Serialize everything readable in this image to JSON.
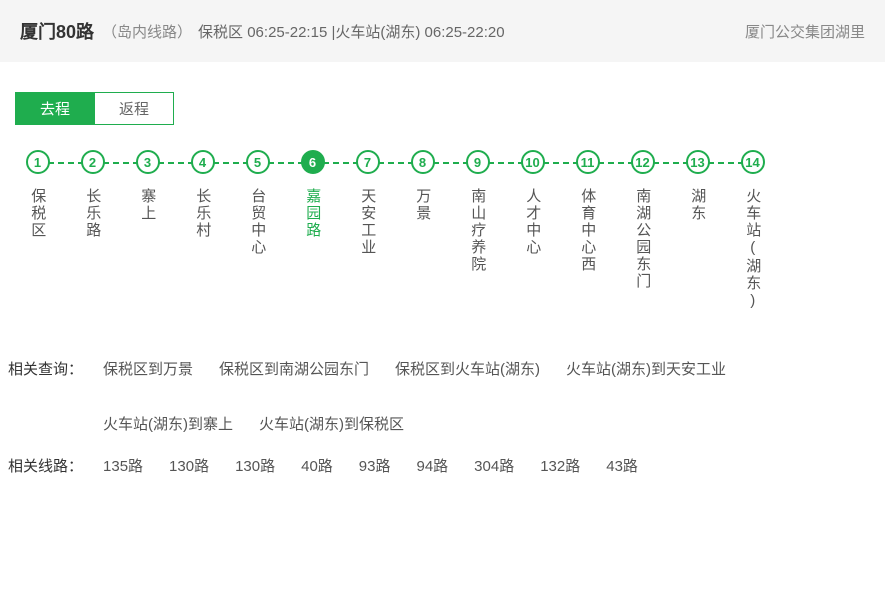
{
  "header": {
    "title": "厦门80路",
    "subtitle": "（岛内线路）",
    "schedule": "保税区 06:25-22:15 |火车站(湖东) 06:25-22:20",
    "company": "厦门公交集团湖里"
  },
  "tabs": {
    "forward": "去程",
    "backward": "返程",
    "active": "forward"
  },
  "stops": [
    {
      "num": "1",
      "name": "保税区",
      "active": false
    },
    {
      "num": "2",
      "name": "长乐路",
      "active": false
    },
    {
      "num": "3",
      "name": "寨上",
      "active": false
    },
    {
      "num": "4",
      "name": "长乐村",
      "active": false
    },
    {
      "num": "5",
      "name": "台贸中心",
      "active": false
    },
    {
      "num": "6",
      "name": "嘉园路",
      "active": true
    },
    {
      "num": "7",
      "name": "天安工业",
      "active": false
    },
    {
      "num": "8",
      "name": "万景",
      "active": false
    },
    {
      "num": "9",
      "name": "南山疗养院",
      "active": false
    },
    {
      "num": "10",
      "name": "人才中心",
      "active": false
    },
    {
      "num": "11",
      "name": "体育中心西",
      "active": false
    },
    {
      "num": "12",
      "name": "南湖公园东门",
      "active": false
    },
    {
      "num": "13",
      "name": "湖东",
      "active": false
    },
    {
      "num": "14",
      "name": "火车站(湖东)",
      "active": false
    }
  ],
  "related_queries": {
    "label": "相关查询：",
    "items": [
      "保税区到万景",
      "保税区到南湖公园东门",
      "保税区到火车站(湖东)",
      "火车站(湖东)到天安工业",
      "火车站(湖东)到寨上",
      "火车站(湖东)到保税区"
    ]
  },
  "related_routes": {
    "label": "相关线路：",
    "items": [
      "135路",
      "130路",
      "130路",
      "40路",
      "93路",
      "94路",
      "304路",
      "132路",
      "43路"
    ]
  },
  "colors": {
    "accent": "#1fad4e",
    "header_bg": "#f5f5f5",
    "text_muted": "#888"
  }
}
